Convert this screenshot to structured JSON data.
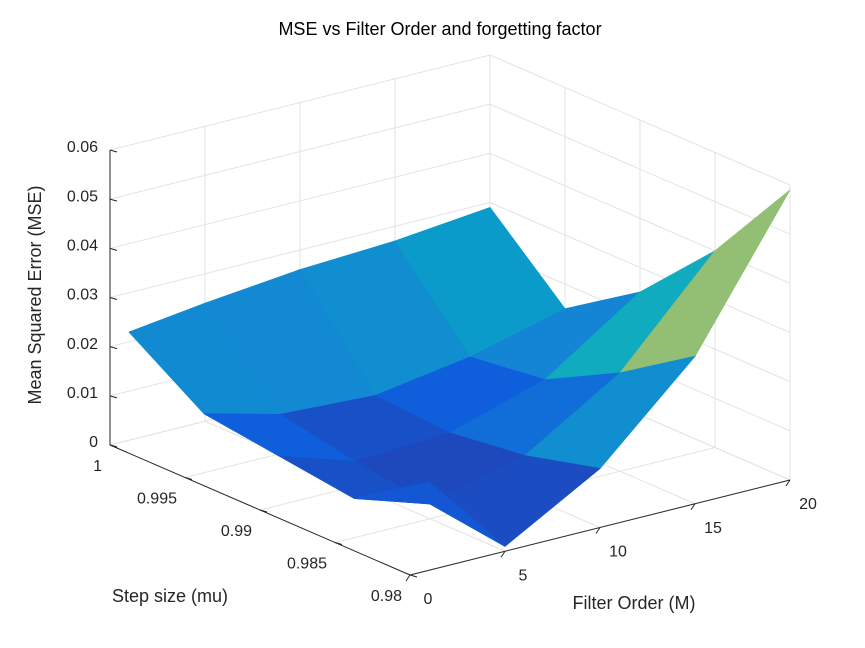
{
  "chart_data": {
    "type": "surface",
    "title": "MSE vs Filter Order and forgetting factor",
    "xlabel": "Filter Order (M)",
    "ylabel": "Step size (mu)",
    "zlabel": "Mean Squared Error (MSE)",
    "x": [
      1,
      5,
      10,
      15,
      20
    ],
    "y": [
      0.98,
      0.985,
      0.99,
      0.995,
      1
    ],
    "z": [
      [
        0.018,
        0.001,
        0.012,
        0.03,
        0.059
      ],
      [
        0.008,
        0.003,
        0.008,
        0.02,
        0.04
      ],
      [
        0.01,
        0.005,
        0.006,
        0.012,
        0.025
      ],
      [
        0.012,
        0.008,
        0.007,
        0.01,
        0.015
      ],
      [
        0.022,
        0.024,
        0.026,
        0.027,
        0.029
      ]
    ],
    "xlim": [
      0,
      20
    ],
    "xticks": [
      0,
      5,
      10,
      15,
      20
    ],
    "ylim": [
      0.98,
      1
    ],
    "yticks": [
      0.98,
      0.985,
      0.99,
      0.995,
      1
    ],
    "zlim": [
      0,
      0.06
    ],
    "zticks": [
      0,
      0.01,
      0.02,
      0.03,
      0.04,
      0.05,
      0.06
    ],
    "grid": true,
    "colormap": [
      "#352a87",
      "#0f5cdd",
      "#1485d4",
      "#06a7c6",
      "#38b99e",
      "#92bf73",
      "#d9ba56",
      "#fcce2e",
      "#f9fb0e"
    ]
  }
}
